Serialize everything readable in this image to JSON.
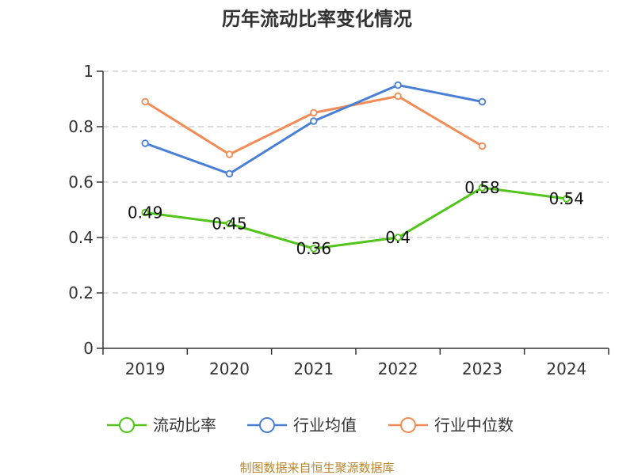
{
  "chart_data": {
    "type": "line",
    "title": "历年流动比率变化情况",
    "categories": [
      "2019",
      "2020",
      "2021",
      "2022",
      "2023",
      "2024"
    ],
    "ylim": [
      0,
      1
    ],
    "yticks": [
      "0",
      "0.2",
      "0.4",
      "0.6",
      "0.8",
      "1"
    ],
    "ytick_values": [
      0,
      0.2,
      0.4,
      0.6,
      0.8,
      1
    ],
    "grid": true,
    "legend_position": "bottom",
    "series": [
      {
        "name": "流动比率",
        "color": "#52c41a",
        "values": [
          0.49,
          0.45,
          0.36,
          0.4,
          0.58,
          0.54
        ],
        "labels": [
          "0.49",
          "0.45",
          "0.36",
          "0.4",
          "0.58",
          "0.54"
        ]
      },
      {
        "name": "行业均值",
        "color": "#4a7fd6",
        "values": [
          0.74,
          0.63,
          0.82,
          0.95,
          0.89,
          null
        ]
      },
      {
        "name": "行业中位数",
        "color": "#f28c57",
        "values": [
          0.89,
          0.7,
          0.85,
          0.91,
          0.73,
          null
        ]
      }
    ],
    "source": "制图数据来自恒生聚源数据库"
  }
}
